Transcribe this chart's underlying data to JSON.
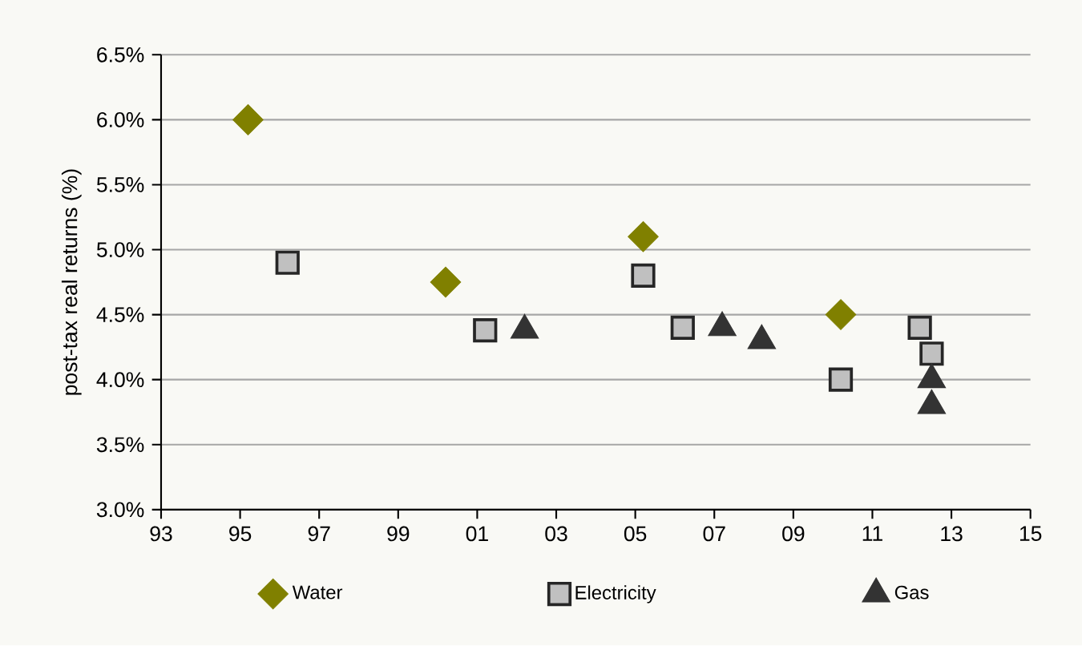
{
  "chart_data": {
    "type": "scatter",
    "ylabel": "post-tax real returns (%)",
    "xlim": [
      1993,
      2015
    ],
    "ylim": [
      3.0,
      6.5
    ],
    "xticks": [
      {
        "value": 1993,
        "label": "93"
      },
      {
        "value": 1995,
        "label": "95"
      },
      {
        "value": 1997,
        "label": "97"
      },
      {
        "value": 1999,
        "label": "99"
      },
      {
        "value": 2001,
        "label": "01"
      },
      {
        "value": 2003,
        "label": "03"
      },
      {
        "value": 2005,
        "label": "05"
      },
      {
        "value": 2007,
        "label": "07"
      },
      {
        "value": 2009,
        "label": "09"
      },
      {
        "value": 2011,
        "label": "11"
      },
      {
        "value": 2013,
        "label": "13"
      },
      {
        "value": 2015,
        "label": "15"
      }
    ],
    "yticks": [
      {
        "value": 3.0,
        "label": "3.0%"
      },
      {
        "value": 3.5,
        "label": "3.5%"
      },
      {
        "value": 4.0,
        "label": "4.0%"
      },
      {
        "value": 4.5,
        "label": "4.5%"
      },
      {
        "value": 5.0,
        "label": "5.0%"
      },
      {
        "value": 5.5,
        "label": "5.5%"
      },
      {
        "value": 6.0,
        "label": "6.0%"
      },
      {
        "value": 6.5,
        "label": "6.5%"
      }
    ],
    "grid": "y",
    "legend": "bottom",
    "series": [
      {
        "name": "Water",
        "color": "#808000",
        "marker": "diamond",
        "x": [
          1995.2,
          2000.2,
          2005.2,
          2010.2
        ],
        "values": [
          6.0,
          4.75,
          5.1,
          4.5
        ]
      },
      {
        "name": "Electricity",
        "color": "#c0c0c0",
        "marker": "square",
        "x": [
          1996.2,
          2001.2,
          2005.2,
          2006.2,
          2010.2,
          2012.2,
          2012.5
        ],
        "values": [
          4.9,
          4.38,
          4.8,
          4.4,
          4.0,
          4.4,
          4.2
        ]
      },
      {
        "name": "Gas",
        "color": "#333333",
        "marker": "triangle",
        "x": [
          2002.2,
          2007.2,
          2008.2,
          2012.5,
          2012.5
        ],
        "values": [
          4.38,
          4.4,
          4.3,
          4.0,
          3.8
        ]
      }
    ]
  }
}
